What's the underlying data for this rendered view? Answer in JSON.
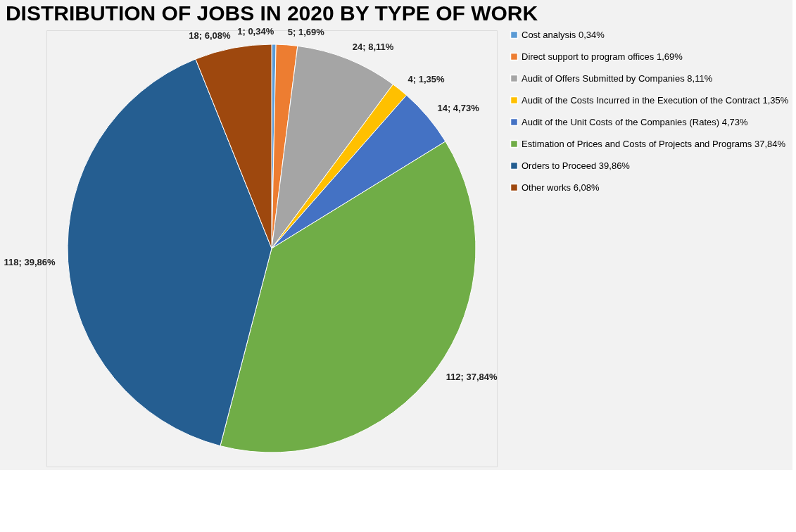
{
  "chart_data": {
    "type": "pie",
    "title": "DISTRIBUTION OF JOBS IN 2020 BY TYPE OF WORK",
    "categories": [
      "Cost analysis 0,34%",
      "Direct support to program offices 1,69%",
      "Audit of Offers Submitted by Companies 8,11%",
      "Audit of the Costs Incurred in the Execution of the Contract 1,35%",
      "Audit of the Unit Costs of the Companies (Rates) 4,73%",
      "Estimation of Prices and Costs of Projects and Programs 37,84%",
      "Orders to Proceed 39,86%",
      "Other works 6,08%"
    ],
    "values": [
      1,
      5,
      24,
      4,
      14,
      112,
      118,
      18
    ],
    "value_labels": [
      "1; 0,34%",
      "5; 1,69%",
      "24; 8,11%",
      "4; 1,35%",
      "14; 4,73%",
      "112; 37,84%",
      "118; 39,86%",
      "18; 6,08%"
    ],
    "colors": [
      "#5b9bd5",
      "#ed7d31",
      "#a5a5a5",
      "#ffc000",
      "#4472c4",
      "#70ad47",
      "#255e91",
      "#9e480e"
    ],
    "legend": "right"
  }
}
